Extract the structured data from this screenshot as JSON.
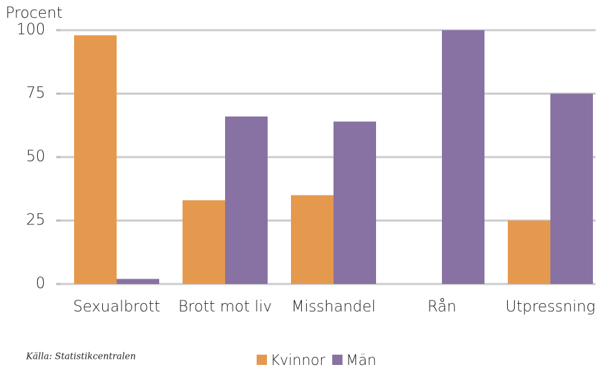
{
  "chart_data": {
    "type": "bar",
    "y_label": "Procent",
    "categories": [
      "Sexualbrott",
      "Brott mot liv",
      "Misshandel",
      "Rån",
      "Utpressning"
    ],
    "series": [
      {
        "name": "Kvinnor",
        "color": "#e5994f",
        "values": [
          98,
          33,
          35,
          0,
          25
        ]
      },
      {
        "name": "Män",
        "color": "#8772a3",
        "values": [
          2,
          66,
          64,
          100,
          75
        ]
      }
    ],
    "ylim": [
      0,
      100
    ],
    "yticks": [
      0,
      25,
      50,
      75,
      100
    ],
    "grid": true,
    "source": "Källa: Statistikcentralen"
  }
}
